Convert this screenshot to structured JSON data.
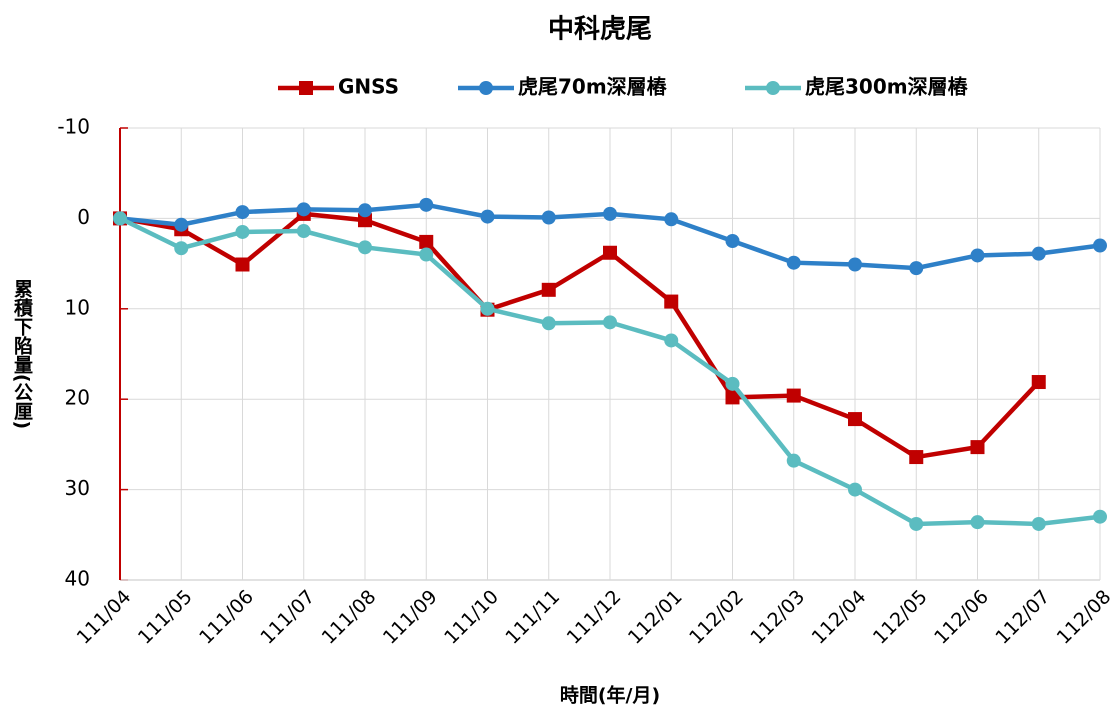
{
  "chart_data": {
    "type": "line",
    "title": "中科虎尾",
    "x_label": "時間(年/月)",
    "y_label": "累積下陷量(公厘)",
    "categories": [
      "111/04",
      "111/05",
      "111/06",
      "111/07",
      "111/08",
      "111/09",
      "111/10",
      "111/11",
      "111/12",
      "112/01",
      "112/02",
      "112/03",
      "112/04",
      "112/05",
      "112/06",
      "112/07",
      "112/08"
    ],
    "series": [
      {
        "name": "GNSS",
        "color": "#c00000",
        "marker": "square",
        "values": [
          0,
          1.2,
          5.1,
          -0.5,
          0.2,
          2.6,
          10.1,
          7.9,
          3.8,
          9.2,
          19.8,
          19.6,
          22.2,
          26.4,
          25.3,
          18.1,
          null
        ]
      },
      {
        "name": "虎尾70m深層樁",
        "color": "#2e80c8",
        "marker": "circle",
        "values": [
          0,
          0.7,
          -0.7,
          -1.0,
          -0.9,
          -1.5,
          -0.2,
          -0.1,
          -0.5,
          0.1,
          2.5,
          4.9,
          5.1,
          5.5,
          4.1,
          3.9,
          3.0
        ]
      },
      {
        "name": "虎尾300m深層樁",
        "color": "#5bbcc0",
        "marker": "circle",
        "values": [
          0,
          3.3,
          1.5,
          1.4,
          3.2,
          4.0,
          10.0,
          11.6,
          11.5,
          13.5,
          18.3,
          26.8,
          30.0,
          33.8,
          33.6,
          33.8,
          33.0
        ]
      }
    ],
    "ylim": [
      -10,
      40
    ],
    "y_inverted": true,
    "yticks": [
      -10,
      0,
      10,
      20,
      30,
      40
    ],
    "y_axis_color": "#c00000",
    "grid": true,
    "legend": "top"
  }
}
